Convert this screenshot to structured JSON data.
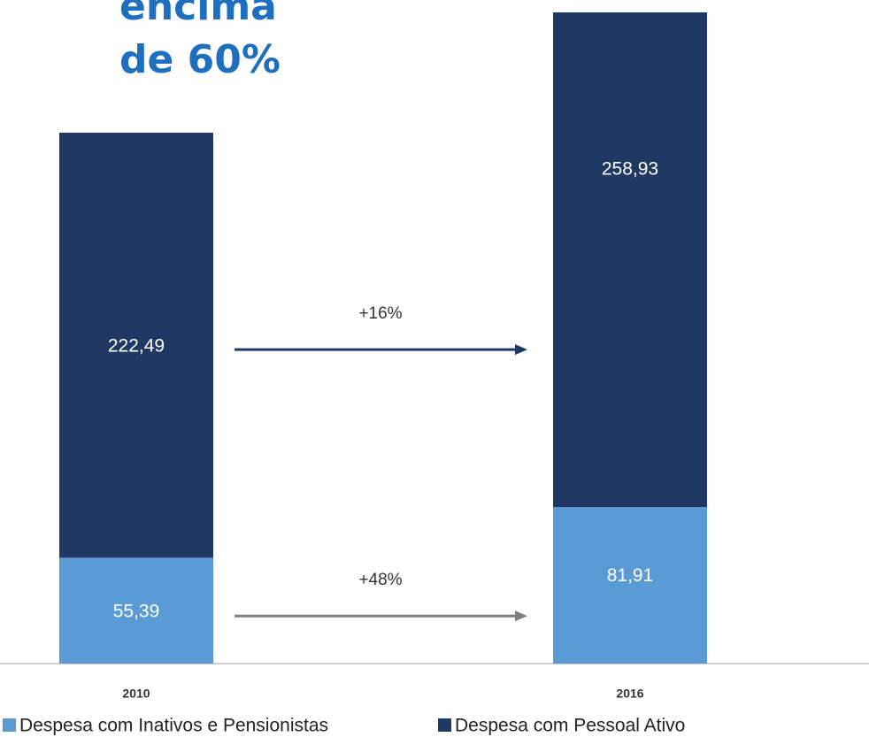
{
  "chart_data": {
    "type": "stacked-bar",
    "title": [
      "encima",
      "de 60%"
    ],
    "categories": [
      "2010",
      "2016"
    ],
    "series": [
      {
        "name": "Despesa com Inativos e Pensionistas",
        "color": "#5b9bd5",
        "values": [
          55.39,
          81.91
        ],
        "value_labels": [
          "55,39",
          "81,91"
        ],
        "change_label": "+48%",
        "change_color": "#7f7f7f"
      },
      {
        "name": "Despesa com Pessoal Ativo",
        "color": "#203864",
        "values": [
          222.49,
          258.93
        ],
        "value_labels": [
          "222,49",
          "258,93"
        ],
        "change_label": "+16%",
        "change_color": "#1f3864"
      }
    ]
  }
}
